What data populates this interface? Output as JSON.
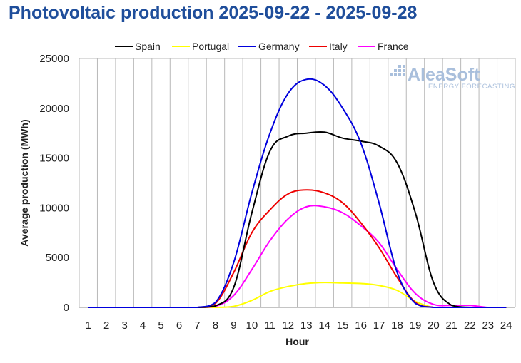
{
  "chart_data": {
    "type": "line",
    "title": "Photovoltaic production 2025-09-22 - 2025-09-28",
    "xlabel": "Hour",
    "ylabel": "Average production (MWh)",
    "ylim": [
      0,
      25000
    ],
    "yticks": [
      0,
      5000,
      10000,
      15000,
      20000,
      25000
    ],
    "x": [
      1,
      2,
      3,
      4,
      5,
      6,
      7,
      8,
      9,
      10,
      11,
      12,
      13,
      14,
      15,
      16,
      17,
      18,
      19,
      20,
      21,
      22,
      23,
      24
    ],
    "grid": "vertical",
    "legend_position": "top",
    "series": [
      {
        "name": "Spain",
        "color": "#000000",
        "values": [
          0,
          0,
          0,
          0,
          0,
          0,
          0,
          150,
          2000,
          9500,
          15700,
          17200,
          17500,
          17600,
          17000,
          16700,
          16200,
          14500,
          9500,
          2500,
          200,
          0,
          0,
          0
        ]
      },
      {
        "name": "Portugal",
        "color": "#ffff00",
        "values": [
          0,
          0,
          0,
          0,
          0,
          0,
          0,
          0,
          100,
          700,
          1600,
          2100,
          2400,
          2500,
          2450,
          2400,
          2200,
          1700,
          600,
          0,
          0,
          0,
          0,
          0
        ]
      },
      {
        "name": "Germany",
        "color": "#0000dd",
        "values": [
          0,
          0,
          0,
          0,
          0,
          0,
          0,
          500,
          4500,
          11500,
          17500,
          21500,
          22900,
          22300,
          20000,
          16500,
          10500,
          3500,
          400,
          0,
          0,
          0,
          0,
          0
        ]
      },
      {
        "name": "Italy",
        "color": "#ee0000",
        "values": [
          0,
          0,
          0,
          0,
          0,
          0,
          0,
          400,
          3500,
          7500,
          9800,
          11400,
          11800,
          11500,
          10500,
          8500,
          6000,
          3000,
          500,
          0,
          0,
          0,
          0,
          0
        ]
      },
      {
        "name": "France",
        "color": "#ff00ff",
        "values": [
          0,
          0,
          0,
          0,
          0,
          0,
          0,
          100,
          1200,
          3800,
          6700,
          8900,
          10100,
          10100,
          9500,
          8200,
          6500,
          3800,
          1400,
          300,
          200,
          200,
          0,
          0
        ]
      }
    ]
  },
  "logo": {
    "name": "AleaSoft",
    "tagline": "ENERGY FORECASTING"
  }
}
